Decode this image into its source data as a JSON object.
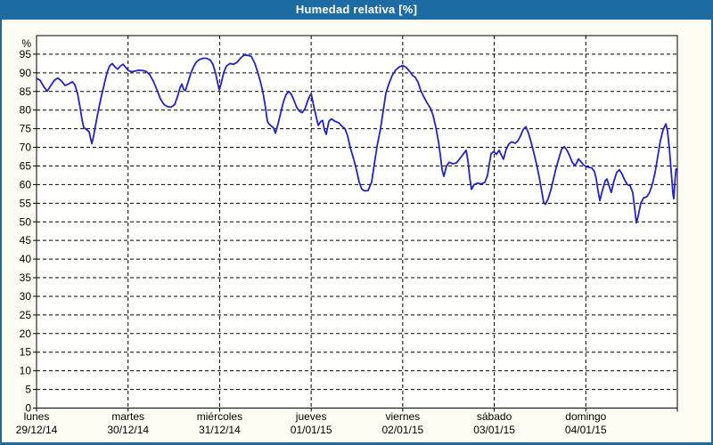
{
  "window": {
    "title": "Humedad relativa [%]"
  },
  "colors": {
    "accent": "#1d6ba3",
    "title_text": "#ffffff",
    "content_bg": "#fdfdf4",
    "plot_bg": "#fffffd",
    "grid": "#000000",
    "line": "#2222cc"
  },
  "chart_data": {
    "type": "line",
    "title": "Humedad relativa [%]",
    "ylabel": "%",
    "ylim": [
      0,
      100
    ],
    "grid": true,
    "legend": "none",
    "y_ticks": [
      0,
      5,
      10,
      15,
      20,
      25,
      30,
      35,
      40,
      45,
      50,
      55,
      60,
      65,
      70,
      75,
      80,
      85,
      90,
      95
    ],
    "x_span_days": 7,
    "x_days": [
      {
        "name": "lunes",
        "date": "29/12/14"
      },
      {
        "name": "martes",
        "date": "30/12/14"
      },
      {
        "name": "miércoles",
        "date": "31/12/14"
      },
      {
        "name": "jueves",
        "date": "01/01/15"
      },
      {
        "name": "viernes",
        "date": "02/01/15"
      },
      {
        "name": "sábado",
        "date": "03/01/15"
      },
      {
        "name": "domingo",
        "date": "04/01/15"
      }
    ],
    "series": [
      {
        "name": "Humedad relativa [%]",
        "color": "#2222cc",
        "points": [
          [
            0.0,
            88.5
          ],
          [
            0.039,
            88.0
          ],
          [
            0.078,
            86.3
          ],
          [
            0.117,
            85.1
          ],
          [
            0.156,
            86.6
          ],
          [
            0.195,
            88.0
          ],
          [
            0.234,
            88.6
          ],
          [
            0.273,
            87.8
          ],
          [
            0.312,
            86.6
          ],
          [
            0.35,
            87.0
          ],
          [
            0.389,
            87.6
          ],
          [
            0.419,
            86.8
          ],
          [
            0.448,
            84.5
          ],
          [
            0.477,
            80.5
          ],
          [
            0.497,
            77.5
          ],
          [
            0.516,
            75.3
          ],
          [
            0.545,
            74.8
          ],
          [
            0.574,
            74.2
          ],
          [
            0.589,
            72.5
          ],
          [
            0.604,
            71.0
          ],
          [
            0.623,
            73.0
          ],
          [
            0.652,
            77.0
          ],
          [
            0.682,
            80.8
          ],
          [
            0.711,
            84.0
          ],
          [
            0.74,
            87.0
          ],
          [
            0.769,
            90.0
          ],
          [
            0.798,
            91.9
          ],
          [
            0.828,
            92.5
          ],
          [
            0.857,
            91.6
          ],
          [
            0.886,
            91.0
          ],
          [
            0.915,
            91.8
          ],
          [
            0.944,
            92.3
          ],
          [
            0.974,
            91.5
          ],
          [
            1.003,
            90.6
          ],
          [
            1.042,
            90.3
          ],
          [
            1.081,
            90.5
          ],
          [
            1.12,
            90.7
          ],
          [
            1.159,
            90.6
          ],
          [
            1.197,
            90.4
          ],
          [
            1.236,
            89.5
          ],
          [
            1.275,
            87.8
          ],
          [
            1.314,
            85.5
          ],
          [
            1.353,
            83.0
          ],
          [
            1.392,
            81.5
          ],
          [
            1.431,
            80.9
          ],
          [
            1.47,
            80.8
          ],
          [
            1.509,
            81.5
          ],
          [
            1.538,
            83.5
          ],
          [
            1.567,
            86.0
          ],
          [
            1.587,
            87.0
          ],
          [
            1.606,
            85.6
          ],
          [
            1.626,
            85.2
          ],
          [
            1.655,
            87.5
          ],
          [
            1.684,
            89.8
          ],
          [
            1.713,
            91.5
          ],
          [
            1.743,
            92.8
          ],
          [
            1.781,
            93.6
          ],
          [
            1.82,
            93.9
          ],
          [
            1.859,
            93.9
          ],
          [
            1.898,
            93.4
          ],
          [
            1.928,
            92.2
          ],
          [
            1.957,
            89.8
          ],
          [
            1.976,
            87.5
          ],
          [
            1.996,
            85.4
          ],
          [
            2.015,
            87.0
          ],
          [
            2.044,
            90.0
          ],
          [
            2.074,
            91.8
          ],
          [
            2.113,
            92.5
          ],
          [
            2.152,
            92.3
          ],
          [
            2.191,
            92.8
          ],
          [
            2.23,
            94.0
          ],
          [
            2.268,
            94.8
          ],
          [
            2.307,
            94.7
          ],
          [
            2.346,
            94.4
          ],
          [
            2.385,
            92.5
          ],
          [
            2.415,
            90.2
          ],
          [
            2.444,
            87.8
          ],
          [
            2.473,
            84.8
          ],
          [
            2.502,
            80.5
          ],
          [
            2.522,
            77.0
          ],
          [
            2.541,
            76.2
          ],
          [
            2.57,
            75.6
          ],
          [
            2.59,
            75.2
          ],
          [
            2.609,
            73.8
          ],
          [
            2.638,
            76.3
          ],
          [
            2.668,
            79.3
          ],
          [
            2.697,
            82.2
          ],
          [
            2.726,
            84.2
          ],
          [
            2.755,
            85.0
          ],
          [
            2.784,
            84.2
          ],
          [
            2.814,
            82.5
          ],
          [
            2.843,
            80.7
          ],
          [
            2.872,
            79.7
          ],
          [
            2.901,
            79.3
          ],
          [
            2.931,
            80.3
          ],
          [
            2.96,
            82.3
          ],
          [
            2.984,
            83.8
          ],
          [
            3.001,
            84.3
          ],
          [
            3.028,
            81.1
          ],
          [
            3.057,
            78.0
          ],
          [
            3.077,
            75.9
          ],
          [
            3.106,
            77.0
          ],
          [
            3.125,
            77.2
          ],
          [
            3.145,
            74.7
          ],
          [
            3.164,
            73.5
          ],
          [
            3.193,
            77.0
          ],
          [
            3.222,
            77.6
          ],
          [
            3.262,
            77.0
          ],
          [
            3.3,
            76.6
          ],
          [
            3.33,
            75.8
          ],
          [
            3.369,
            75.0
          ],
          [
            3.398,
            73.1
          ],
          [
            3.427,
            69.9
          ],
          [
            3.466,
            66.7
          ],
          [
            3.495,
            63.9
          ],
          [
            3.524,
            60.7
          ],
          [
            3.553,
            58.8
          ],
          [
            3.583,
            58.3
          ],
          [
            3.622,
            58.4
          ],
          [
            3.661,
            60.7
          ],
          [
            3.69,
            65.5
          ],
          [
            3.719,
            70.2
          ],
          [
            3.758,
            75.1
          ],
          [
            3.787,
            79.8
          ],
          [
            3.816,
            84.6
          ],
          [
            3.846,
            86.8
          ],
          [
            3.885,
            89.3
          ],
          [
            3.924,
            90.8
          ],
          [
            3.962,
            91.6
          ],
          [
            4.001,
            92.0
          ],
          [
            4.04,
            91.4
          ],
          [
            4.079,
            90.3
          ],
          [
            4.108,
            89.3
          ],
          [
            4.137,
            88.8
          ],
          [
            4.167,
            87.5
          ],
          [
            4.196,
            85.3
          ],
          [
            4.225,
            83.8
          ],
          [
            4.264,
            82.0
          ],
          [
            4.303,
            80.5
          ],
          [
            4.332,
            78.5
          ],
          [
            4.361,
            75.5
          ],
          [
            4.391,
            71.5
          ],
          [
            4.41,
            68.0
          ],
          [
            4.43,
            64.0
          ],
          [
            4.449,
            62.2
          ],
          [
            4.478,
            65.0
          ],
          [
            4.508,
            66.0
          ],
          [
            4.547,
            65.6
          ],
          [
            4.586,
            65.8
          ],
          [
            4.625,
            67.0
          ],
          [
            4.664,
            68.3
          ],
          [
            4.693,
            69.2
          ],
          [
            4.712,
            66.5
          ],
          [
            4.732,
            62.0
          ],
          [
            4.751,
            58.7
          ],
          [
            4.78,
            60.0
          ],
          [
            4.819,
            60.4
          ],
          [
            4.858,
            60.2
          ],
          [
            4.897,
            60.6
          ],
          [
            4.926,
            62.5
          ],
          [
            4.946,
            65.5
          ],
          [
            4.965,
            68.3
          ],
          [
            4.995,
            68.9
          ],
          [
            5.024,
            68.1
          ],
          [
            5.053,
            69.2
          ],
          [
            5.082,
            67.7
          ],
          [
            5.101,
            66.8
          ],
          [
            5.131,
            69.5
          ],
          [
            5.16,
            70.9
          ],
          [
            5.189,
            71.5
          ],
          [
            5.228,
            71.1
          ],
          [
            5.257,
            71.7
          ],
          [
            5.286,
            73.0
          ],
          [
            5.316,
            74.8
          ],
          [
            5.345,
            75.5
          ],
          [
            5.374,
            73.8
          ],
          [
            5.403,
            71.3
          ],
          [
            5.433,
            68.5
          ],
          [
            5.462,
            65.5
          ],
          [
            5.491,
            62.0
          ],
          [
            5.52,
            58.0
          ],
          [
            5.54,
            55.2
          ],
          [
            5.559,
            54.7
          ],
          [
            5.588,
            56.2
          ],
          [
            5.618,
            58.5
          ],
          [
            5.647,
            61.5
          ],
          [
            5.676,
            64.5
          ],
          [
            5.705,
            67.0
          ],
          [
            5.735,
            69.5
          ],
          [
            5.764,
            70.2
          ],
          [
            5.793,
            69.3
          ],
          [
            5.822,
            67.8
          ],
          [
            5.851,
            66.0
          ],
          [
            5.881,
            65.1
          ],
          [
            5.9,
            65.8
          ],
          [
            5.919,
            66.9
          ],
          [
            5.949,
            66.1
          ],
          [
            5.978,
            65.2
          ],
          [
            6.007,
            64.8
          ],
          [
            6.036,
            64.6
          ],
          [
            6.065,
            64.5
          ],
          [
            6.095,
            63.5
          ],
          [
            6.114,
            61.5
          ],
          [
            6.133,
            58.5
          ],
          [
            6.153,
            55.7
          ],
          [
            6.182,
            58.5
          ],
          [
            6.211,
            61.0
          ],
          [
            6.231,
            61.5
          ],
          [
            6.26,
            59.2
          ],
          [
            6.279,
            57.9
          ],
          [
            6.308,
            61.0
          ],
          [
            6.338,
            63.3
          ],
          [
            6.367,
            64.0
          ],
          [
            6.396,
            62.8
          ],
          [
            6.425,
            61.2
          ],
          [
            6.455,
            60.0
          ],
          [
            6.484,
            59.7
          ],
          [
            6.513,
            57.8
          ],
          [
            6.533,
            53.8
          ],
          [
            6.552,
            49.7
          ],
          [
            6.572,
            51.5
          ],
          [
            6.601,
            55.0
          ],
          [
            6.63,
            56.4
          ],
          [
            6.669,
            56.8
          ],
          [
            6.698,
            58.0
          ],
          [
            6.727,
            60.2
          ],
          [
            6.757,
            63.2
          ],
          [
            6.786,
            67.5
          ],
          [
            6.815,
            71.8
          ],
          [
            6.844,
            74.7
          ],
          [
            6.874,
            76.3
          ],
          [
            6.893,
            74.3
          ],
          [
            6.913,
            69.5
          ],
          [
            6.932,
            63.8
          ],
          [
            6.952,
            57.5
          ],
          [
            6.961,
            56.2
          ],
          [
            6.976,
            61.5
          ],
          [
            6.986,
            64.2
          ]
        ]
      }
    ]
  }
}
